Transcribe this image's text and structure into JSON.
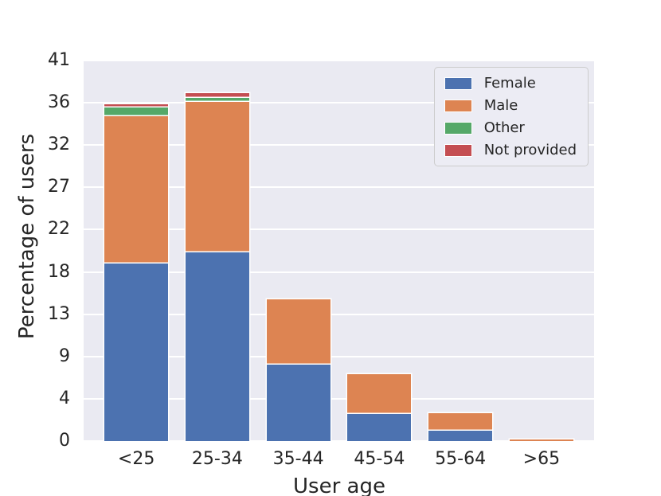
{
  "style": {
    "plot_bg": "#EAEAF2",
    "grid_color": "#FFFFFF",
    "text_color": "#262626",
    "bar_edge_color": "#FFFFFF",
    "legend_bg": "#ECECF4",
    "legend_border": "#CCCCCC"
  },
  "chart_data": {
    "type": "bar",
    "stacked": true,
    "title": "",
    "xlabel": "User age",
    "ylabel": "Percentage of users",
    "categories": [
      "<25",
      "25-34",
      "35-44",
      "45-54",
      "55-64",
      ">65"
    ],
    "series": [
      {
        "name": "Female",
        "color": "#4C72B0",
        "values": [
          19.1,
          20.3,
          8.2,
          2.9,
          1.1,
          0.0
        ]
      },
      {
        "name": "Male",
        "color": "#DD8452",
        "values": [
          15.9,
          16.2,
          7.1,
          4.3,
          1.9,
          0.2
        ]
      },
      {
        "name": "Other",
        "color": "#55A868",
        "values": [
          0.9,
          0.5,
          0.0,
          0.0,
          0.0,
          0.0
        ]
      },
      {
        "name": "Not provided",
        "color": "#C44E52",
        "values": [
          0.4,
          0.5,
          0.0,
          0.0,
          0.0,
          0.0
        ]
      }
    ],
    "totals": [
      36.3,
      37.5,
      15.3,
      7.2,
      3.0,
      0.2
    ],
    "ylim": [
      0,
      41
    ],
    "y_tick_labels": [
      "0",
      "4",
      "9",
      "13",
      "18",
      "22",
      "27",
      "32",
      "36",
      "41"
    ],
    "grid": "horizontal",
    "legend_position": "upper right",
    "bar_width_fraction": 0.125
  }
}
